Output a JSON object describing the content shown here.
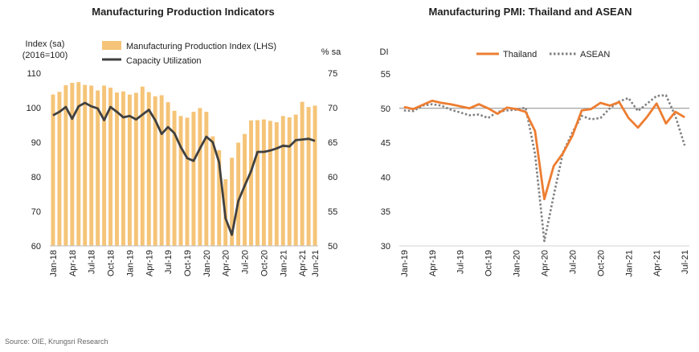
{
  "source": "Source: OIE, Krungsri Research",
  "chart_data": [
    {
      "type": "bar+line",
      "title": "Manufacturing Production Indicators",
      "ylabel_left": "Index (sa)",
      "ylabel_left_sub": "(2016=100)",
      "ylabel_right": "% sa",
      "ylim_left": [
        60,
        110
      ],
      "yticks_left": [
        60,
        70,
        80,
        90,
        100,
        110
      ],
      "ylim_right": [
        50,
        75
      ],
      "yticks_right": [
        50,
        55,
        60,
        65,
        70,
        75
      ],
      "legend_position": "top-center",
      "x": [
        "Jan-18",
        "Feb-18",
        "Mar-18",
        "Apr-18",
        "May-18",
        "Jun-18",
        "Jul-18",
        "Aug-18",
        "Sep-18",
        "Oct-18",
        "Nov-18",
        "Dec-18",
        "Jan-19",
        "Feb-19",
        "Mar-19",
        "Apr-19",
        "May-19",
        "Jun-19",
        "Jul-19",
        "Aug-19",
        "Sep-19",
        "Oct-19",
        "Nov-19",
        "Dec-19",
        "Jan-20",
        "Feb-20",
        "Mar-20",
        "Apr-20",
        "May-20",
        "Jun-20",
        "Jul-20",
        "Aug-20",
        "Sep-20",
        "Oct-20",
        "Nov-20",
        "Dec-20",
        "Jan-21",
        "Feb-21",
        "Mar-21",
        "Apr-21",
        "May-21",
        "Jun-21"
      ],
      "x_tick_labels": [
        "Jan-18",
        "Apr-18",
        "Jul-18",
        "Oct-18",
        "Jan-19",
        "Apr-19",
        "Jul-19",
        "Oct-19",
        "Jan-20",
        "Apr-20",
        "Jul-20",
        "Oct-20",
        "Jan-21",
        "Apr-21",
        "Jun-21"
      ],
      "series": [
        {
          "name": "Manufacturing Production Index (LHS)",
          "kind": "bar",
          "axis": "left",
          "color": "#F5C478",
          "values": [
            103.8,
            104.6,
            106.5,
            107.2,
            107.4,
            106.6,
            106.4,
            105.0,
            106.4,
            105.8,
            104.4,
            104.7,
            103.8,
            104.3,
            106.1,
            104.5,
            103.3,
            103.6,
            101.6,
            99.1,
            97.6,
            97.1,
            98.8,
            99.9,
            98.8,
            91.7,
            87.7,
            79.3,
            85.5,
            89.9,
            92.4,
            96.3,
            96.4,
            96.6,
            96.2,
            95.8,
            97.6,
            97.2,
            98.0,
            101.7,
            100.2,
            100.6
          ]
        },
        {
          "name": "Capacity Utilization",
          "kind": "line",
          "axis": "right",
          "color": "#404040",
          "values": [
            68.9,
            69.4,
            70.1,
            68.4,
            70.2,
            70.7,
            70.2,
            69.9,
            68.2,
            70.1,
            69.4,
            68.6,
            68.8,
            68.3,
            69.0,
            69.7,
            68.2,
            66.2,
            67.2,
            66.3,
            64.3,
            62.7,
            62.3,
            64.1,
            65.8,
            65.0,
            62.1,
            54.0,
            51.6,
            56.5,
            58.7,
            60.8,
            63.6,
            63.6,
            63.8,
            64.1,
            64.5,
            64.4,
            65.3,
            65.4,
            65.5,
            65.2
          ]
        }
      ]
    },
    {
      "type": "line",
      "title": "Manufacturing PMI: Thailand and ASEAN",
      "ylabel": "DI",
      "ylim": [
        30,
        55
      ],
      "yticks": [
        30,
        35,
        40,
        45,
        50,
        55
      ],
      "reference_line": 50,
      "legend_position": "top-center",
      "x": [
        "Jan-19",
        "Feb-19",
        "Mar-19",
        "Apr-19",
        "May-19",
        "Jun-19",
        "Jul-19",
        "Aug-19",
        "Sep-19",
        "Oct-19",
        "Nov-19",
        "Dec-19",
        "Jan-20",
        "Feb-20",
        "Mar-20",
        "Apr-20",
        "May-20",
        "Jun-20",
        "Jul-20",
        "Aug-20",
        "Sep-20",
        "Oct-20",
        "Nov-20",
        "Dec-20",
        "Jan-21",
        "Feb-21",
        "Mar-21",
        "Apr-21",
        "May-21",
        "Jun-21",
        "Jul-21"
      ],
      "x_tick_labels": [
        "Jan-19",
        "Apr-19",
        "Jul-19",
        "Oct-19",
        "Jan-20",
        "Apr-20",
        "Jul-20",
        "Oct-20",
        "Jan-21",
        "Apr-21",
        "Jul-21"
      ],
      "series": [
        {
          "name": "Thailand",
          "style": "solid",
          "color": "#ED7D31",
          "values": [
            50.2,
            49.9,
            50.5,
            51.1,
            50.8,
            50.6,
            50.3,
            50.0,
            50.6,
            50.0,
            49.2,
            50.1,
            49.9,
            49.5,
            46.7,
            36.8,
            41.6,
            43.5,
            46.0,
            49.7,
            49.9,
            50.8,
            50.4,
            50.9,
            48.6,
            47.2,
            48.8,
            50.7,
            47.8,
            49.5,
            48.7
          ]
        },
        {
          "name": "ASEAN",
          "style": "dotted",
          "color": "#808080",
          "values": [
            49.7,
            49.6,
            50.4,
            50.6,
            50.4,
            49.8,
            49.4,
            49.0,
            49.1,
            48.6,
            49.5,
            49.7,
            49.8,
            50.1,
            43.4,
            30.7,
            37.3,
            43.6,
            46.5,
            48.9,
            48.4,
            48.6,
            50.0,
            51.0,
            51.5,
            49.6,
            50.7,
            51.8,
            51.9,
            48.9,
            44.6
          ]
        }
      ]
    }
  ]
}
